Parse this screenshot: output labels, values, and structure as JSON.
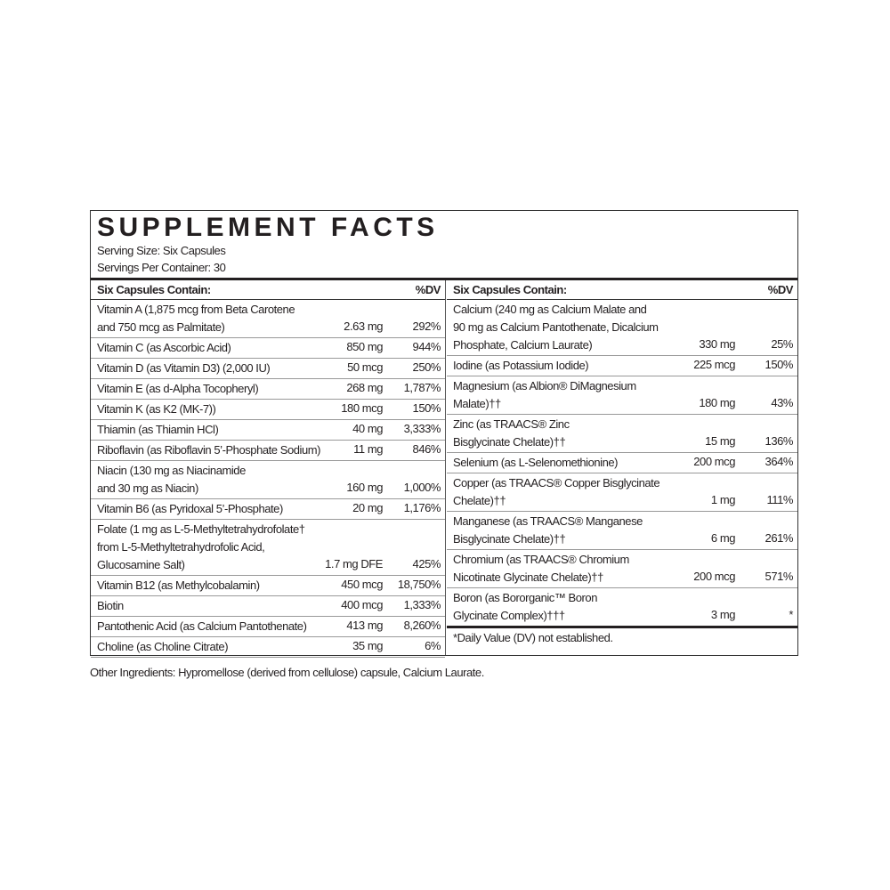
{
  "title": "SUPPLEMENT FACTS",
  "serving_size": "Serving Size: Six Capsules",
  "servings_per_container": "Servings Per Container: 30",
  "header": {
    "name": "Six Capsules Contain:",
    "dv": "%DV"
  },
  "left": [
    {
      "name": "Vitamin A (1,875 mcg from Beta Carotene\n   and 750 mcg as Palmitate)",
      "amount": "2.63 mg",
      "dv": "292%"
    },
    {
      "name": "Vitamin C (as Ascorbic Acid)",
      "amount": "850 mg",
      "dv": "944%"
    },
    {
      "name": "Vitamin D (as Vitamin D3) (2,000 IU)",
      "amount": "50 mcg",
      "dv": "250%"
    },
    {
      "name": "Vitamin E (as d-Alpha Tocopheryl)",
      "amount": "268 mg",
      "dv": "1,787%"
    },
    {
      "name": "Vitamin K (as K2 (MK-7))",
      "amount": "180 mcg",
      "dv": "150%"
    },
    {
      "name": "Thiamin (as Thiamin HCl)",
      "amount": "40 mg",
      "dv": "3,333%"
    },
    {
      "name": "Riboflavin (as Riboflavin 5’-Phosphate Sodium)",
      "amount": "11 mg",
      "dv": "846%"
    },
    {
      "name": "Niacin (130 mg as Niacinamide\n   and 30 mg as Niacin)",
      "amount": "160 mg",
      "dv": "1,000%"
    },
    {
      "name": "Vitamin B6 (as Pyridoxal 5’-Phosphate)",
      "amount": "20 mg",
      "dv": "1,176%"
    },
    {
      "name": "Folate (1 mg as L-5-Methyltetrahydrofolate†\n   from L-5-Methyltetrahydrofolic Acid,\n   Glucosamine Salt)",
      "amount": "1.7 mg DFE",
      "dv": "425%"
    },
    {
      "name": "Vitamin B12 (as Methylcobalamin)",
      "amount": "450 mcg",
      "dv": "18,750%"
    },
    {
      "name": "Biotin",
      "amount": "400 mcg",
      "dv": "1,333%"
    },
    {
      "name": "Pantothenic Acid (as Calcium Pantothenate)",
      "amount": "413 mg",
      "dv": "8,260%"
    },
    {
      "name": "Choline (as Choline Citrate)",
      "amount": "35 mg",
      "dv": "6%"
    }
  ],
  "right": [
    {
      "name": "Calcium (240 mg as Calcium Malate and\n   90 mg as Calcium Pantothenate, Dicalcium\n   Phosphate, Calcium Laurate)",
      "amount": "330 mg",
      "dv": "25%"
    },
    {
      "name": "Iodine (as Potassium Iodide)",
      "amount": "225 mcg",
      "dv": "150%"
    },
    {
      "name": "Magnesium (as Albion® DiMagnesium\n   Malate)††",
      "amount": "180 mg",
      "dv": "43%"
    },
    {
      "name": "Zinc (as TRAACS® Zinc\n   Bisglycinate Chelate)††",
      "amount": "15 mg",
      "dv": "136%"
    },
    {
      "name": "Selenium (as L-Selenomethionine)",
      "amount": "200 mcg",
      "dv": "364%"
    },
    {
      "name": "Copper (as TRAACS® Copper Bisglycinate\n   Chelate)††",
      "amount": "1 mg",
      "dv": "111%"
    },
    {
      "name": "Manganese (as TRAACS® Manganese\n   Bisglycinate Chelate)††",
      "amount": "6 mg",
      "dv": "261%"
    },
    {
      "name": "Chromium (as TRAACS® Chromium\n   Nicotinate Glycinate Chelate)††",
      "amount": "200 mcg",
      "dv": "571%"
    },
    {
      "name": "Boron (as Bororganic™ Boron\n   Glycinate Complex)†††",
      "amount": "3 mg",
      "dv": "*"
    }
  ],
  "dv_note": "*Daily Value (DV) not established.",
  "other_ingredients": "Other Ingredients: Hypromellose (derived from cellulose) capsule, Calcium Laurate."
}
